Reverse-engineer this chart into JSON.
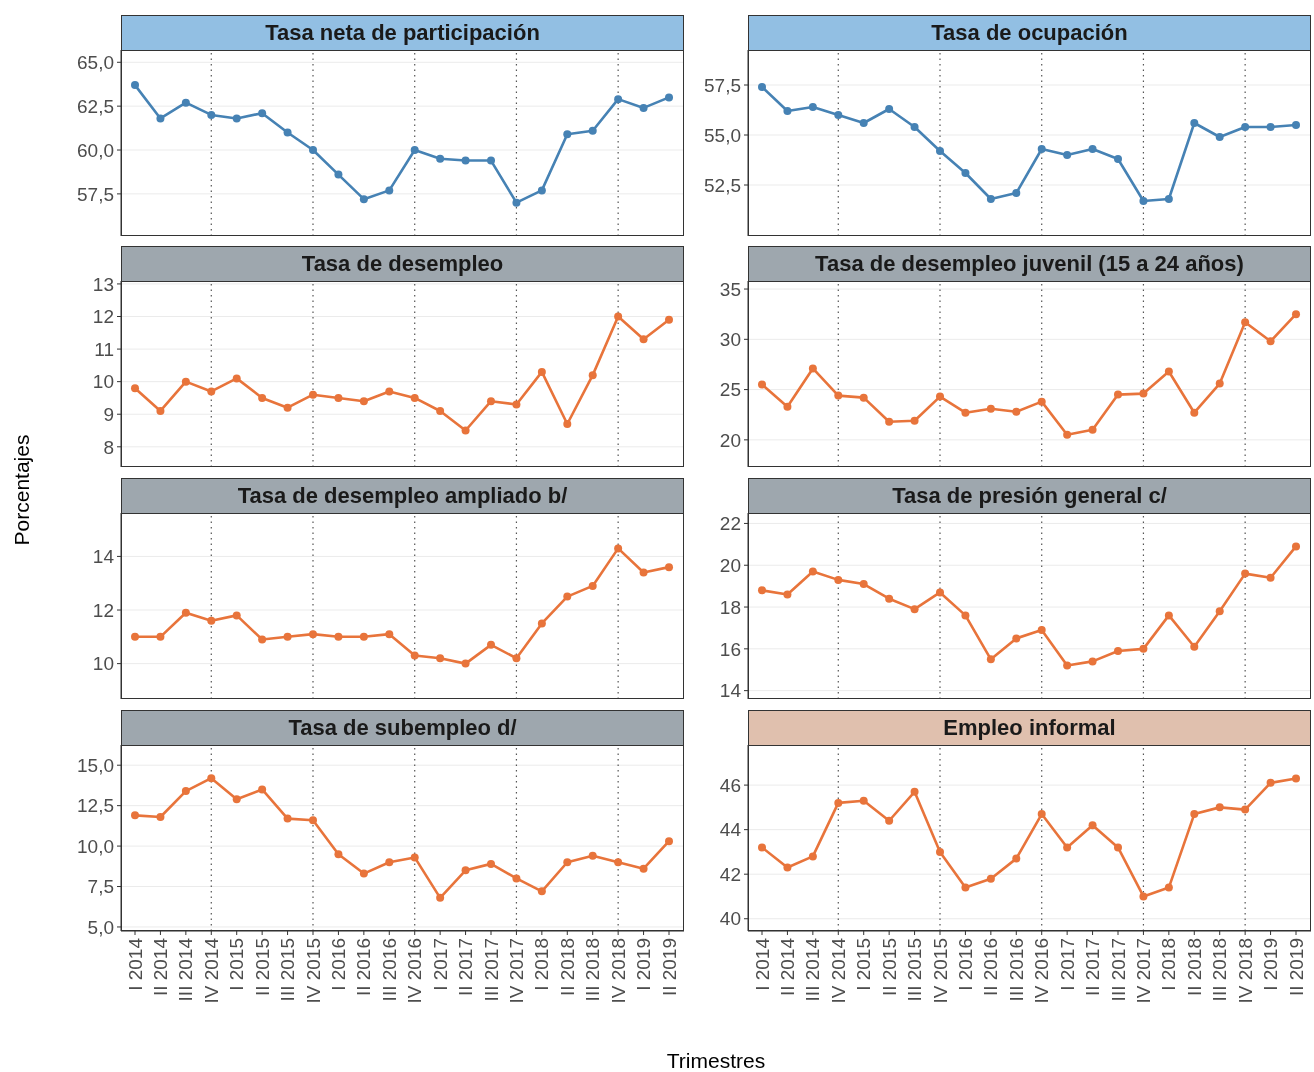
{
  "chart_data": [
    {
      "type": "line",
      "title": "Tasa neta de participación",
      "categories": [
        "I 2014",
        "II 2014",
        "III 2014",
        "IV 2014",
        "I 2015",
        "II 2015",
        "III 2015",
        "IV 2015",
        "I 2016",
        "II 2016",
        "III 2016",
        "IV 2016",
        "I 2017",
        "II 2017",
        "III 2017",
        "IV 2017",
        "I 2018",
        "II 2018",
        "III 2018",
        "IV 2018",
        "I 2019",
        "II 2019"
      ],
      "series": [
        {
          "color": "#4682b4",
          "values": [
            63.7,
            61.8,
            62.7,
            62.0,
            61.8,
            62.1,
            61.0,
            60.0,
            58.6,
            57.2,
            57.7,
            60.0,
            59.5,
            59.4,
            59.4,
            57.0,
            57.7,
            60.9,
            61.1,
            62.9,
            62.4,
            63.0
          ]
        }
      ],
      "ylim": [
        55.1,
        65.7
      ],
      "yticks": [
        {
          "value": 57.5,
          "label": "57,5"
        },
        {
          "value": 60,
          "label": "60,0"
        },
        {
          "value": 62.5,
          "label": "62,5"
        },
        {
          "value": 65,
          "label": "65,0"
        }
      ],
      "grid": "y",
      "marker": "circle",
      "tick_labels": "y",
      "ref_lines": [
        {
          "axis": "x",
          "value": "IV 2014",
          "color": "#555555",
          "line_style": "dotted"
        },
        {
          "axis": "x",
          "value": "IV 2015",
          "color": "#555555",
          "line_style": "dotted"
        },
        {
          "axis": "x",
          "value": "IV 2016",
          "color": "#555555",
          "line_style": "dotted"
        },
        {
          "axis": "x",
          "value": "IV 2017",
          "color": "#555555",
          "line_style": "dotted"
        },
        {
          "axis": "x",
          "value": "IV 2018",
          "color": "#555555",
          "line_style": "dotted"
        }
      ]
    },
    {
      "type": "line",
      "title": "Tasa de ocupación",
      "categories": [
        "I 2014",
        "II 2014",
        "III 2014",
        "IV 2014",
        "I 2015",
        "II 2015",
        "III 2015",
        "IV 2015",
        "I 2016",
        "II 2016",
        "III 2016",
        "IV 2016",
        "I 2017",
        "II 2017",
        "III 2017",
        "IV 2017",
        "I 2018",
        "II 2018",
        "III 2018",
        "IV 2018",
        "I 2019",
        "II 2019"
      ],
      "series": [
        {
          "color": "#4682b4",
          "values": [
            57.4,
            56.2,
            56.4,
            56.0,
            55.6,
            56.3,
            55.4,
            54.2,
            53.1,
            51.8,
            52.1,
            54.3,
            54.0,
            54.3,
            53.8,
            51.7,
            51.8,
            55.6,
            54.9,
            55.4,
            55.4,
            55.5
          ]
        }
      ],
      "ylim": [
        49.95,
        59.25
      ],
      "yticks": [
        {
          "value": 52.5,
          "label": "52,5"
        },
        {
          "value": 55,
          "label": "55,0"
        },
        {
          "value": 57.5,
          "label": "57,5"
        }
      ],
      "grid": "y",
      "marker": "circle",
      "tick_labels": "y",
      "ref_lines": [
        {
          "axis": "x",
          "value": "IV 2014",
          "color": "#555555",
          "line_style": "dotted"
        },
        {
          "axis": "x",
          "value": "IV 2015",
          "color": "#555555",
          "line_style": "dotted"
        },
        {
          "axis": "x",
          "value": "IV 2016",
          "color": "#555555",
          "line_style": "dotted"
        },
        {
          "axis": "x",
          "value": "IV 2017",
          "color": "#555555",
          "line_style": "dotted"
        },
        {
          "axis": "x",
          "value": "IV 2018",
          "color": "#555555",
          "line_style": "dotted"
        }
      ]
    },
    {
      "type": "line",
      "title": "Tasa de desempleo",
      "categories": [
        "I 2014",
        "II 2014",
        "III 2014",
        "IV 2014",
        "I 2015",
        "II 2015",
        "III 2015",
        "IV 2015",
        "I 2016",
        "II 2016",
        "III 2016",
        "IV 2016",
        "I 2017",
        "II 2017",
        "III 2017",
        "IV 2017",
        "I 2018",
        "II 2018",
        "III 2018",
        "IV 2018",
        "I 2019",
        "II 2019"
      ],
      "series": [
        {
          "color": "#e8743b",
          "values": [
            9.8,
            9.1,
            10.0,
            9.7,
            10.1,
            9.5,
            9.2,
            9.6,
            9.5,
            9.4,
            9.7,
            9.5,
            9.1,
            8.5,
            9.4,
            9.3,
            10.3,
            8.7,
            10.2,
            12.0,
            11.3,
            11.9
          ]
        }
      ],
      "ylim": [
        7.38,
        13.09
      ],
      "yticks": [
        8,
        9,
        10,
        11,
        12,
        13
      ],
      "grid": "y",
      "marker": "circle",
      "tick_labels": "y",
      "ref_lines": [
        {
          "axis": "x",
          "value": "IV 2014",
          "color": "#555555",
          "line_style": "dotted"
        },
        {
          "axis": "x",
          "value": "IV 2015",
          "color": "#555555",
          "line_style": "dotted"
        },
        {
          "axis": "x",
          "value": "IV 2016",
          "color": "#555555",
          "line_style": "dotted"
        },
        {
          "axis": "x",
          "value": "IV 2017",
          "color": "#555555",
          "line_style": "dotted"
        },
        {
          "axis": "x",
          "value": "IV 2018",
          "color": "#555555",
          "line_style": "dotted"
        }
      ]
    },
    {
      "type": "line",
      "title": "Tasa de desempleo juvenil (15 a 24 años)",
      "categories": [
        "I 2014",
        "II 2014",
        "III 2014",
        "IV 2014",
        "I 2015",
        "II 2015",
        "III 2015",
        "IV 2015",
        "I 2016",
        "II 2016",
        "III 2016",
        "IV 2016",
        "I 2017",
        "II 2017",
        "III 2017",
        "IV 2017",
        "I 2018",
        "II 2018",
        "III 2018",
        "IV 2018",
        "I 2019",
        "II 2019"
      ],
      "series": [
        {
          "color": "#e8743b",
          "values": [
            25.5,
            23.3,
            27.1,
            24.4,
            24.2,
            21.8,
            21.9,
            24.3,
            22.7,
            23.1,
            22.8,
            23.8,
            20.5,
            21.0,
            24.5,
            24.6,
            26.8,
            22.7,
            25.6,
            31.7,
            29.8,
            32.5
          ]
        }
      ],
      "ylim": [
        17.3,
        35.8
      ],
      "yticks": [
        20,
        25,
        30,
        35
      ],
      "grid": "y",
      "marker": "circle",
      "tick_labels": "y",
      "ref_lines": [
        {
          "axis": "x",
          "value": "IV 2014",
          "color": "#555555",
          "line_style": "dotted"
        },
        {
          "axis": "x",
          "value": "IV 2015",
          "color": "#555555",
          "line_style": "dotted"
        },
        {
          "axis": "x",
          "value": "IV 2016",
          "color": "#555555",
          "line_style": "dotted"
        },
        {
          "axis": "x",
          "value": "IV 2017",
          "color": "#555555",
          "line_style": "dotted"
        },
        {
          "axis": "x",
          "value": "IV 2018",
          "color": "#555555",
          "line_style": "dotted"
        }
      ]
    },
    {
      "type": "line",
      "title": "Tasa de desempleo ampliado b/",
      "ylabel": "Porcentajes",
      "categories": [
        "I 2014",
        "II 2014",
        "III 2014",
        "IV 2014",
        "I 2015",
        "II 2015",
        "III 2015",
        "IV 2015",
        "I 2016",
        "II 2016",
        "III 2016",
        "IV 2016",
        "I 2017",
        "II 2017",
        "III 2017",
        "IV 2017",
        "I 2018",
        "II 2018",
        "III 2018",
        "IV 2018",
        "I 2019",
        "II 2019"
      ],
      "series": [
        {
          "color": "#e8743b",
          "values": [
            11.0,
            11.0,
            11.9,
            11.6,
            11.8,
            10.9,
            11.0,
            11.1,
            11.0,
            11.0,
            11.1,
            10.3,
            10.2,
            10.0,
            10.7,
            10.2,
            11.5,
            12.5,
            12.9,
            14.3,
            13.4,
            13.6
          ]
        }
      ],
      "ylim": [
        8.68,
        15.62
      ],
      "yticks": [
        10,
        12,
        14
      ],
      "grid": "y",
      "marker": "circle",
      "tick_labels": "y",
      "ref_lines": [
        {
          "axis": "x",
          "value": "IV 2014",
          "color": "#555555",
          "line_style": "dotted"
        },
        {
          "axis": "x",
          "value": "IV 2015",
          "color": "#555555",
          "line_style": "dotted"
        },
        {
          "axis": "x",
          "value": "IV 2016",
          "color": "#555555",
          "line_style": "dotted"
        },
        {
          "axis": "x",
          "value": "IV 2017",
          "color": "#555555",
          "line_style": "dotted"
        },
        {
          "axis": "x",
          "value": "IV 2018",
          "color": "#555555",
          "line_style": "dotted"
        }
      ]
    },
    {
      "type": "line",
      "title": "Tasa de presión general c/",
      "categories": [
        "I 2014",
        "II 2014",
        "III 2014",
        "IV 2014",
        "I 2015",
        "II 2015",
        "III 2015",
        "IV 2015",
        "I 2016",
        "II 2016",
        "III 2016",
        "IV 2016",
        "I 2017",
        "II 2017",
        "III 2017",
        "IV 2017",
        "I 2018",
        "II 2018",
        "III 2018",
        "IV 2018",
        "I 2019",
        "II 2019"
      ],
      "series": [
        {
          "color": "#e8743b",
          "values": [
            18.8,
            18.6,
            19.7,
            19.3,
            19.1,
            18.4,
            17.9,
            18.7,
            17.6,
            15.5,
            16.5,
            16.9,
            15.2,
            15.4,
            15.9,
            16.0,
            17.6,
            16.1,
            17.8,
            19.6,
            19.4,
            20.9
          ]
        }
      ],
      "ylim": [
        13.6,
        22.5
      ],
      "yticks": [
        14,
        16,
        18,
        20,
        22
      ],
      "grid": "y",
      "marker": "circle",
      "tick_labels": "y",
      "ref_lines": [
        {
          "axis": "x",
          "value": "IV 2014",
          "color": "#555555",
          "line_style": "dotted"
        },
        {
          "axis": "x",
          "value": "IV 2015",
          "color": "#555555",
          "line_style": "dotted"
        },
        {
          "axis": "x",
          "value": "IV 2016",
          "color": "#555555",
          "line_style": "dotted"
        },
        {
          "axis": "x",
          "value": "IV 2017",
          "color": "#555555",
          "line_style": "dotted"
        },
        {
          "axis": "x",
          "value": "IV 2018",
          "color": "#555555",
          "line_style": "dotted"
        }
      ]
    },
    {
      "type": "line",
      "title": "Tasa de subempleo d/",
      "xlabel": "Trimestres",
      "categories": [
        "I 2014",
        "II 2014",
        "III 2014",
        "IV 2014",
        "I 2015",
        "II 2015",
        "III 2015",
        "IV 2015",
        "I 2016",
        "II 2016",
        "III 2016",
        "IV 2016",
        "I 2017",
        "II 2017",
        "III 2017",
        "IV 2017",
        "I 2018",
        "II 2018",
        "III 2018",
        "IV 2018",
        "I 2019",
        "II 2019"
      ],
      "series": [
        {
          "color": "#e8743b",
          "values": [
            11.9,
            11.8,
            13.4,
            14.2,
            12.9,
            13.5,
            11.7,
            11.6,
            9.5,
            8.3,
            9.0,
            9.3,
            6.8,
            8.5,
            8.9,
            8.0,
            7.2,
            9.0,
            9.4,
            9.0,
            8.6,
            10.3
          ]
        }
      ],
      "ylim": [
        4.75,
        16.25
      ],
      "yticks": [
        {
          "value": 5,
          "label": "5,0"
        },
        {
          "value": 7.5,
          "label": "7,5"
        },
        {
          "value": 10,
          "label": "10,0"
        },
        {
          "value": 12.5,
          "label": "12,5"
        },
        {
          "value": 15,
          "label": "15,0"
        }
      ],
      "grid": "y",
      "marker": "circle",
      "ref_lines": [
        {
          "axis": "x",
          "value": "IV 2014",
          "color": "#555555",
          "line_style": "dotted"
        },
        {
          "axis": "x",
          "value": "IV 2015",
          "color": "#555555",
          "line_style": "dotted"
        },
        {
          "axis": "x",
          "value": "IV 2016",
          "color": "#555555",
          "line_style": "dotted"
        },
        {
          "axis": "x",
          "value": "IV 2017",
          "color": "#555555",
          "line_style": "dotted"
        },
        {
          "axis": "x",
          "value": "IV 2018",
          "color": "#555555",
          "line_style": "dotted"
        }
      ]
    },
    {
      "type": "line",
      "title": "Empleo informal",
      "categories": [
        "I 2014",
        "II 2014",
        "III 2014",
        "IV 2014",
        "I 2015",
        "II 2015",
        "III 2015",
        "IV 2015",
        "I 2016",
        "II 2016",
        "III 2016",
        "IV 2016",
        "I 2017",
        "II 2017",
        "III 2017",
        "IV 2017",
        "I 2018",
        "II 2018",
        "III 2018",
        "IV 2018",
        "I 2019",
        "II 2019"
      ],
      "series": [
        {
          "color": "#e8743b",
          "values": [
            43.2,
            42.3,
            42.8,
            45.2,
            45.3,
            44.4,
            45.7,
            43.0,
            41.4,
            41.8,
            42.7,
            44.7,
            43.2,
            44.2,
            43.2,
            41.0,
            41.4,
            44.7,
            45.0,
            44.9,
            46.1,
            46.3
          ]
        }
      ],
      "ylim": [
        39.45,
        47.8
      ],
      "yticks": [
        40,
        42,
        44,
        46
      ],
      "grid": "y",
      "marker": "circle",
      "ref_lines": [
        {
          "axis": "x",
          "value": "IV 2014",
          "color": "#555555",
          "line_style": "dotted"
        },
        {
          "axis": "x",
          "value": "IV 2015",
          "color": "#555555",
          "line_style": "dotted"
        },
        {
          "axis": "x",
          "value": "IV 2016",
          "color": "#555555",
          "line_style": "dotted"
        },
        {
          "axis": "x",
          "value": "IV 2017",
          "color": "#555555",
          "line_style": "dotted"
        },
        {
          "axis": "x",
          "value": "IV 2018",
          "color": "#555555",
          "line_style": "dotted"
        }
      ]
    }
  ]
}
